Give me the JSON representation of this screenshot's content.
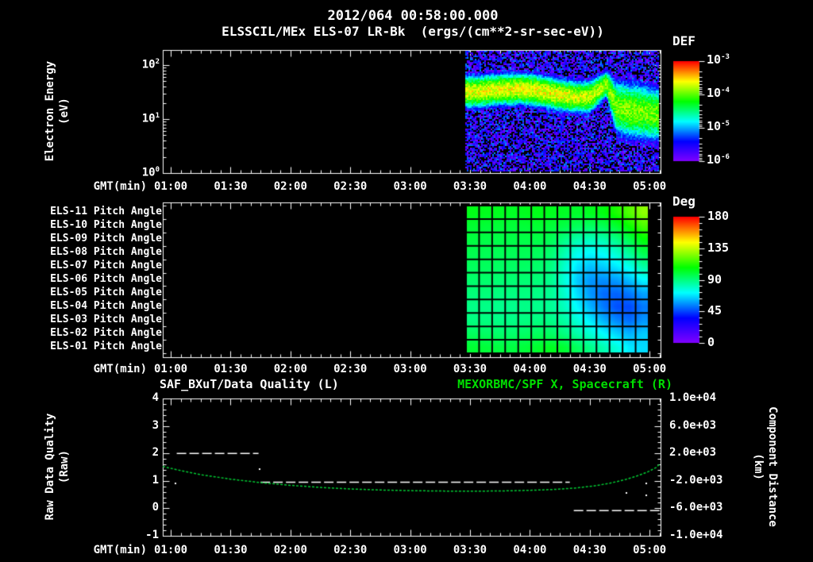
{
  "header": {
    "datetime": "2012/064 00:58:00.000",
    "instrument_line": "ELSSCIL/MEx ELS-07 LR-Bk  (ergs/(cm**2-sr-sec-eV))"
  },
  "colors": {
    "background": "#000000",
    "text": "#ffffff",
    "title_right_green": "#00e000",
    "spacecraft_curve_green": "#00cc33",
    "quality_line_white": "#ffffff"
  },
  "axes": {
    "gmt_label": "GMT(min)",
    "gmt_ticks": [
      "01:00",
      "01:30",
      "02:00",
      "02:30",
      "03:00",
      "03:30",
      "04:00",
      "04:30",
      "05:00"
    ],
    "gmt_tick_minutes": [
      60,
      90,
      120,
      150,
      180,
      210,
      240,
      270,
      300
    ],
    "time_range_min": [
      56,
      305.5
    ]
  },
  "top_panel": {
    "ylabel1": "Electron Energy",
    "ylabel2": "(eV)",
    "ytick_exponents": [
      "2",
      "1",
      "0"
    ],
    "colorbar": {
      "label": "DEF",
      "tick_exponents": [
        "-3",
        "-4",
        "-5",
        "-6"
      ]
    }
  },
  "middle_panel": {
    "row_labels": [
      "ELS-11 Pitch Angle",
      "ELS-10 Pitch Angle",
      "ELS-09 Pitch Angle",
      "ELS-08 Pitch Angle",
      "ELS-07 Pitch Angle",
      "ELS-06 Pitch Angle",
      "ELS-05 Pitch Angle",
      "ELS-04 Pitch Angle",
      "ELS-03 Pitch Angle",
      "ELS-02 Pitch Angle",
      "ELS-01 Pitch Angle"
    ],
    "colorbar": {
      "label": "Deg",
      "ticks": [
        "180",
        "135",
        "90",
        "45",
        "0"
      ]
    }
  },
  "bottom_panel": {
    "title_left": "SAF_BXuT/Data Quality (L)",
    "title_right": "MEXORBMC/SPF X, Spacecraft (R)",
    "ylabel_left1": "Raw Data Quality",
    "ylabel_left2": "(Raw)",
    "yticks_left": [
      "4",
      "3",
      "2",
      "1",
      "0",
      "-1"
    ],
    "ylabel_right1": "Component Distance",
    "ylabel_right2": "(km)",
    "yticks_right": [
      "1.0e+04",
      "6.0e+03",
      "2.0e+03",
      "-2.0e+03",
      "-6.0e+03",
      "-1.0e+04"
    ]
  },
  "chart_data": [
    {
      "id": "electron_energy_spectrogram",
      "type": "heatmap",
      "title": "ELSSCIL/MEx ELS-07 LR-Bk",
      "z_units": "ergs/(cm**2-sr-sec-eV)",
      "xlabel": "GMT(min)",
      "ylabel": "Electron Energy (eV)",
      "x_axis_gmt": [
        "01:00",
        "05:05"
      ],
      "data_start_gmt": "03:28",
      "data_end_gmt": "05:05",
      "y_scale": "log",
      "y_range_ev": [
        1,
        190
      ],
      "z_scale": "log",
      "z_range": [
        1e-06,
        0.001
      ],
      "band_times_min": [
        208,
        220,
        230,
        240,
        250,
        260,
        270,
        278,
        283,
        290,
        305
      ],
      "band_center_ev": [
        33,
        34,
        32,
        31,
        30,
        29,
        28,
        45,
        16,
        14,
        14
      ],
      "band_width_decades": [
        0.3,
        0.3,
        0.3,
        0.3,
        0.3,
        0.3,
        0.3,
        0.26,
        0.5,
        0.55,
        0.52
      ],
      "band_peak_log10_flux": [
        -3.6,
        -3.62,
        -3.66,
        -3.7,
        -3.7,
        -3.76,
        -3.8,
        -3.85,
        -3.95,
        -3.92,
        -3.9
      ]
    },
    {
      "id": "pitch_angle_grid",
      "type": "heatmap",
      "z_units": "Deg",
      "z_range_deg": [
        0,
        180
      ],
      "data_start_gmt": "03:28",
      "data_end_gmt": "05:00",
      "columns": 14,
      "rows": [
        "ELS-11",
        "ELS-10",
        "ELS-09",
        "ELS-08",
        "ELS-07",
        "ELS-06",
        "ELS-05",
        "ELS-04",
        "ELS-03",
        "ELS-02",
        "ELS-01"
      ],
      "values_deg": [
        [
          105,
          104,
          104,
          103,
          104,
          105,
          104,
          103,
          102,
          104,
          106,
          112,
          120,
          128
        ],
        [
          101,
          100,
          100,
          100,
          100,
          101,
          100,
          98,
          95,
          94,
          96,
          101,
          109,
          118
        ],
        [
          99,
          98,
          98,
          98,
          98,
          98,
          96,
          89,
          83,
          81,
          83,
          89,
          97,
          107
        ],
        [
          97,
          96,
          96,
          96,
          96,
          95,
          92,
          83,
          74,
          71,
          73,
          79,
          87,
          97
        ],
        [
          95,
          95,
          94,
          94,
          94,
          93,
          90,
          79,
          68,
          63,
          65,
          69,
          75,
          85
        ],
        [
          93,
          93,
          92,
          92,
          92,
          91,
          88,
          77,
          64,
          57,
          56,
          58,
          63,
          71
        ],
        [
          91,
          91,
          90,
          90,
          90,
          89,
          87,
          79,
          67,
          57,
          51,
          50,
          53,
          59
        ],
        [
          89,
          89,
          88,
          88,
          89,
          88,
          87,
          81,
          71,
          61,
          53,
          47,
          46,
          53
        ],
        [
          90,
          90,
          89,
          89,
          90,
          90,
          89,
          85,
          77,
          69,
          61,
          55,
          51,
          57
        ],
        [
          95,
          94,
          93,
          93,
          94,
          95,
          94,
          90,
          84,
          78,
          72,
          66,
          61,
          65
        ],
        [
          101,
          100,
          99,
          99,
          100,
          102,
          104,
          101,
          95,
          89,
          83,
          77,
          69,
          67
        ]
      ]
    },
    {
      "id": "quality_and_spacecraft_distance",
      "type": "line",
      "title_left": "SAF_BXuT/Data Quality (L)",
      "title_right": "MEXORBMC/SPF X, Spacecraft (R)",
      "ylim_left": [
        -1,
        4
      ],
      "ylim_right": [
        -10000,
        10000
      ],
      "series": [
        {
          "name": "SAF_BXuT/Data Quality",
          "axis": "left",
          "style": "dashed",
          "color": "#ffffff",
          "quality_levels": [
            2,
            1,
            0
          ],
          "segments": [
            {
              "value": 2.0,
              "t_min": [
                63,
                104
              ]
            },
            {
              "value": 0.95,
              "t_min": [
                105,
                260
              ]
            },
            {
              "value": -0.08,
              "t_min": [
                262,
                305
              ]
            }
          ],
          "dots_t_value": [
            [
              62,
              0.95
            ],
            [
              104,
              1.45
            ],
            [
              288,
              0.6
            ],
            [
              298,
              0.95
            ],
            [
              298,
              0.5
            ]
          ]
        },
        {
          "name": "MEXORBMC/SPF X, Spacecraft",
          "axis": "right",
          "style": "dashed",
          "color": "#00cc33",
          "points_t_km": [
            [
              56,
              100
            ],
            [
              65,
              -500
            ],
            [
              75,
              -1100
            ],
            [
              90,
              -1750
            ],
            [
              105,
              -2250
            ],
            [
              120,
              -2650
            ],
            [
              135,
              -2950
            ],
            [
              150,
              -3180
            ],
            [
              165,
              -3330
            ],
            [
              180,
              -3420
            ],
            [
              195,
              -3480
            ],
            [
              210,
              -3500
            ],
            [
              225,
              -3470
            ],
            [
              240,
              -3380
            ],
            [
              252,
              -3250
            ],
            [
              262,
              -3060
            ],
            [
              272,
              -2750
            ],
            [
              280,
              -2350
            ],
            [
              288,
              -1800
            ],
            [
              294,
              -1250
            ],
            [
              299,
              -700
            ],
            [
              303,
              -100
            ],
            [
              305,
              400
            ]
          ]
        }
      ]
    }
  ]
}
